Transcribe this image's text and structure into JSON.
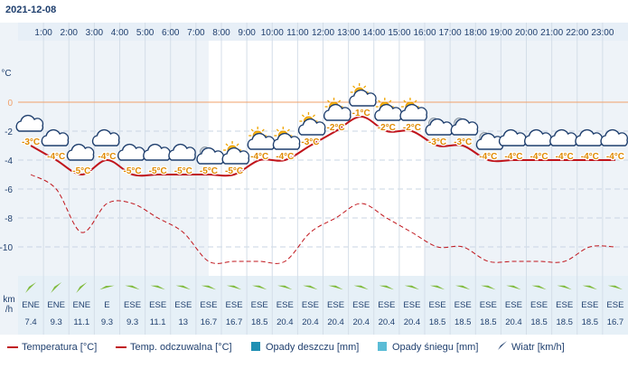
{
  "header": {
    "date": "2021-12-08"
  },
  "chart_data": {
    "type": "line",
    "hours": [
      "1:00",
      "2:00",
      "3:00",
      "4:00",
      "5:00",
      "6:00",
      "7:00",
      "8:00",
      "9:00",
      "10:00",
      "11:00",
      "12:00",
      "13:00",
      "14:00",
      "15:00",
      "16:00",
      "17:00",
      "18:00",
      "19:00",
      "20:00",
      "21:00",
      "22:00",
      "23:00"
    ],
    "x_points": [
      "0:30",
      "1:30",
      "2:30",
      "3:30",
      "4:30",
      "5:30",
      "6:30",
      "7:30",
      "8:30",
      "9:30",
      "10:30",
      "11:30",
      "12:30",
      "13:30",
      "14:30",
      "15:30",
      "16:30",
      "17:30",
      "18:30",
      "19:30",
      "20:30",
      "21:30",
      "22:30",
      "23:30"
    ],
    "yunit": "°C",
    "ylim": [
      -12,
      2
    ],
    "yticks": [
      0,
      -2,
      -4,
      -6,
      -8,
      -10
    ],
    "series": [
      {
        "name": "Temperatura [°C]",
        "color": "#c0141b",
        "style": "solid",
        "values": [
          -3,
          -4,
          -5,
          -4,
          -5,
          -5,
          -5,
          -5,
          -5,
          -4,
          -4,
          -3,
          -2,
          -1,
          -2,
          -2,
          -3,
          -3,
          -4,
          -4,
          -4,
          -4,
          -4,
          -4
        ]
      },
      {
        "name": "Temp. odczuwalna [°C]",
        "color": "#c0141b",
        "style": "dashed",
        "values": [
          -5,
          -6,
          -9,
          -7,
          -7,
          -8,
          -9,
          -11,
          -11,
          -11,
          -11,
          -9,
          -8,
          -7,
          -8,
          -9,
          -10,
          -10,
          -11,
          -11,
          -11,
          -11,
          -10,
          -10
        ]
      }
    ],
    "temp_labels": [
      "-3°C",
      "-4°C",
      "-5°C",
      "-4°C",
      "-5°C",
      "-5°C",
      "-5°C",
      "-5°C",
      "-5°C",
      "-4°C",
      "-4°C",
      "-3°C",
      "-2°C",
      "-1°C",
      "-2°C",
      "-2°C",
      "-3°C",
      "-3°C",
      "-4°C",
      "-4°C",
      "-4°C",
      "-4°C",
      "-4°C",
      "-4°C"
    ],
    "icons": [
      "cloud-icon",
      "cloud-icon",
      "cloud-icon",
      "cloud-icon",
      "cloud-icon",
      "cloud-icon",
      "cloud-icon",
      "night-cloud-icon",
      "sun-cloud-icon",
      "sun-cloud-icon",
      "sun-cloud-icon",
      "sun-cloud-icon",
      "sun-cloud-icon",
      "sun-cloud-icon",
      "sun-cloud-icon",
      "sun-cloud-icon",
      "night-cloud-icon",
      "night-cloud-icon",
      "night-cloud-icon",
      "cloud-icon",
      "cloud-icon",
      "cloud-icon",
      "cloud-icon",
      "cloud-icon"
    ],
    "wind": {
      "unit": "km\n/h",
      "directions": [
        "ENE",
        "ENE",
        "ENE",
        "E",
        "ESE",
        "ESE",
        "ESE",
        "ESE",
        "ESE",
        "ESE",
        "ESE",
        "ESE",
        "ESE",
        "ESE",
        "ESE",
        "ESE",
        "ESE",
        "ESE",
        "ESE",
        "ESE",
        "ESE",
        "ESE",
        "ESE",
        "ESE"
      ],
      "speeds": [
        "7.4",
        "9.3",
        "11.1",
        "9.3",
        "9.3",
        "11.1",
        "13",
        "16.7",
        "16.7",
        "18.5",
        "20.4",
        "20.4",
        "20.4",
        "20.4",
        "20.4",
        "20.4",
        "18.5",
        "18.5",
        "18.5",
        "20.4",
        "18.5",
        "18.5",
        "18.5",
        "16.7"
      ],
      "angles": [
        60,
        60,
        60,
        90,
        120,
        120,
        120,
        120,
        120,
        120,
        120,
        120,
        120,
        120,
        120,
        120,
        120,
        120,
        120,
        120,
        120,
        120,
        120,
        120
      ]
    },
    "daylight": {
      "from": "7:30",
      "to": "16:00"
    },
    "colors": {
      "temp": "#c0141b",
      "zero_line": "#f0a06a",
      "plot_bg": "#eef3f8",
      "day_bg": "#ffffff",
      "wind_bg": "#e6f0f7",
      "wind_arrow": "#7fba3a",
      "label_orange": "#e08a00",
      "axis_text": "#1f3f6e",
      "grid": "#c9d6e3"
    }
  },
  "legend": {
    "temperature": "Temperatura [°C]",
    "feels_like": "Temp. odczuwalna [°C]",
    "rain": "Opady deszczu [mm]",
    "snow": "Opady śniegu [mm]",
    "wind": "Wiatr [km/h]",
    "rain_color": "#1f8fb3",
    "snow_color": "#5bbcd6"
  }
}
